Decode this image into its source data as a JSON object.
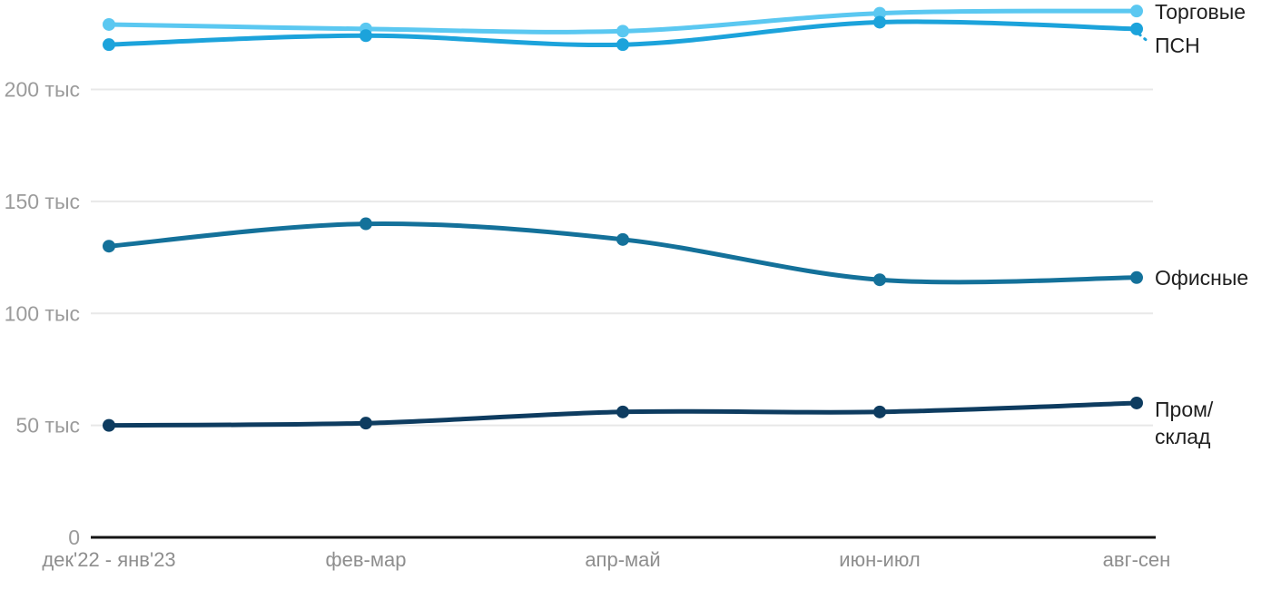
{
  "chart_data": {
    "type": "line",
    "unit": "тыс",
    "categories": [
      "дек'22 - янв'23",
      "фев-мар",
      "апр-май",
      "июн-июл",
      "авг-сен"
    ],
    "series": [
      {
        "key": "torgovye",
        "name": "Торговые",
        "legend_lines": [
          "Торговые"
        ],
        "color": "#5bc8f1",
        "values": [
          229,
          227,
          226,
          234,
          235
        ]
      },
      {
        "key": "psn",
        "name": "ПСН",
        "legend_lines": [
          "ПСН"
        ],
        "color": "#1ca3db",
        "values": [
          220,
          224,
          220,
          230,
          227
        ]
      },
      {
        "key": "ofisnye",
        "name": "Офисные",
        "legend_lines": [
          "Офисные"
        ],
        "color": "#14719a",
        "values": [
          130,
          140,
          133,
          115,
          116
        ]
      },
      {
        "key": "prom-sklad",
        "name": "Пром/склад",
        "legend_lines": [
          "Пром/",
          "склад"
        ],
        "color": "#0e3c60",
        "values": [
          50,
          51,
          56,
          56,
          60
        ]
      }
    ],
    "y_axis": {
      "range": [
        0,
        240
      ],
      "ticks": [
        {
          "value": 0,
          "label": "0"
        },
        {
          "value": 50,
          "label": "50 тыс"
        },
        {
          "value": 100,
          "label": "100 тыс"
        },
        {
          "value": 150,
          "label": "150 тыс"
        },
        {
          "value": 200,
          "label": "200 тыс"
        }
      ]
    },
    "grid": true,
    "legend_position": "right-end-of-lines"
  },
  "colors": {
    "background": "#ffffff",
    "gridline": "#e8e8e8",
    "axis_line": "#141414",
    "y_tick_label": "#9b9b9b",
    "x_tick_label": "#8e8e8e",
    "legend_text": "#1f1f1f"
  }
}
